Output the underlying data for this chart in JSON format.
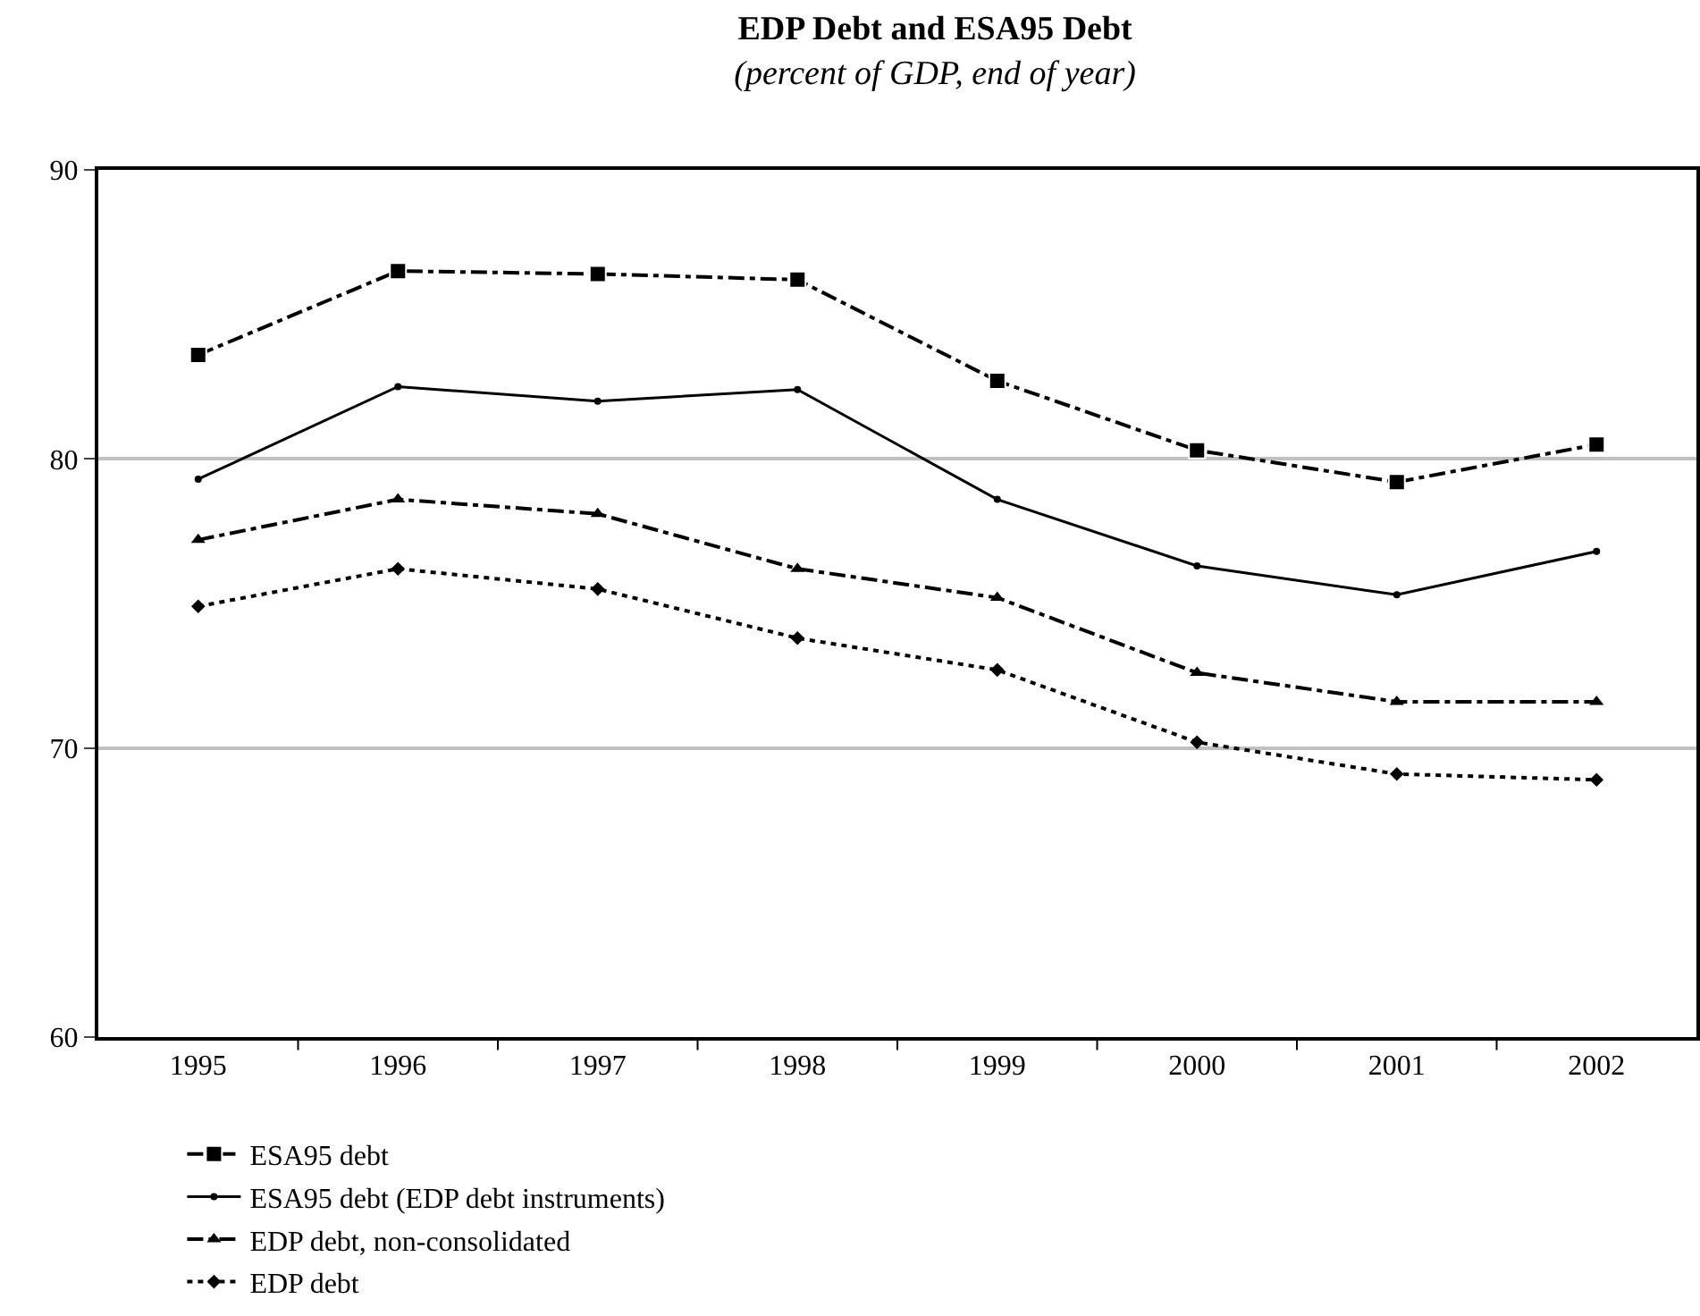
{
  "chart_data": {
    "type": "line",
    "title": "EDP Debt and ESA95 Debt",
    "subtitle": "(percent of GDP, end of year)",
    "categories": [
      "1995",
      "1996",
      "1997",
      "1998",
      "1999",
      "2000",
      "2001",
      "2002"
    ],
    "series": [
      {
        "name": "ESA95 debt",
        "color": "#000000",
        "marker": "square",
        "line_style": "dashed",
        "values": [
          83.6,
          86.5,
          86.4,
          86.2,
          82.7,
          80.3,
          79.2,
          80.5
        ]
      },
      {
        "name": "ESA95 debt (EDP debt instruments)",
        "color": "#000000",
        "marker": "circle",
        "line_style": "solid",
        "values": [
          79.3,
          82.5,
          82.0,
          82.4,
          78.6,
          76.3,
          75.3,
          76.8
        ]
      },
      {
        "name": "EDP debt, non-consolidated",
        "color": "#000000",
        "marker": "triangle",
        "line_style": "dashed",
        "values": [
          77.2,
          78.6,
          78.1,
          76.2,
          75.2,
          72.6,
          71.6,
          71.6
        ]
      },
      {
        "name": "EDP debt",
        "color": "#000000",
        "marker": "diamond",
        "line_style": "dotted",
        "values": [
          74.9,
          76.2,
          75.5,
          73.8,
          72.7,
          70.2,
          69.1,
          68.9
        ]
      }
    ],
    "ylim": [
      60,
      90
    ],
    "yticks": [
      60,
      70,
      80,
      90
    ],
    "grid": "y",
    "legend": "bottom"
  }
}
